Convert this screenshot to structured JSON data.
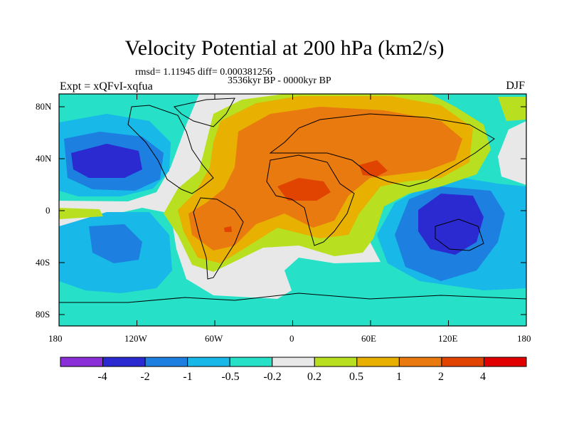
{
  "title": "Velocity Potential at 200 hPa (km2/s)",
  "rmsd_line": "rmsd= 1.11945 diff= 0.000381256",
  "period": "3536kyr BP - 0000kyr BP",
  "experiment": "Expt = xQFvI-xqfua",
  "season": "DJF",
  "lat_ticks": [
    "80N",
    "40N",
    "0",
    "40S",
    "80S"
  ],
  "lon_ticks": [
    "180",
    "120W",
    "60W",
    "0",
    "60E",
    "120E",
    "180"
  ],
  "colorbar": {
    "labels": [
      "-4",
      "-2",
      "-1",
      "-0.5",
      "-0.2",
      "0.2",
      "0.5",
      "1",
      "2",
      "4"
    ],
    "colors": [
      "#8b2fd9",
      "#2a2ad0",
      "#1d7fe0",
      "#18b8e8",
      "#26e0c8",
      "#e8e8e8",
      "#b8e020",
      "#e8b000",
      "#e87a10",
      "#e04400",
      "#e00000"
    ]
  }
}
